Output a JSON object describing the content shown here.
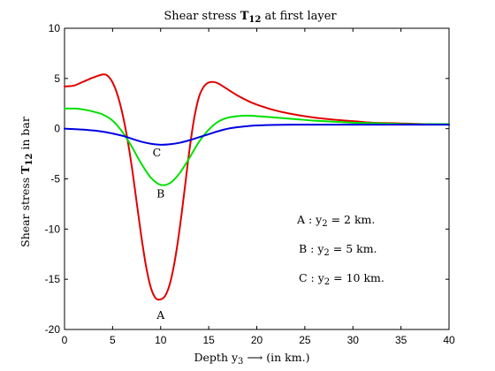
{
  "chart_data": {
    "type": "line",
    "title": {
      "prefix": "Shear stress ",
      "sym": "T",
      "sub": "12",
      "suffix": " at first layer"
    },
    "xlabel": {
      "prefix": "Depth y",
      "sub": "3",
      "suffix": " ⟶ (in km.)"
    },
    "ylabel": {
      "prefix": "Shear stress ",
      "sym": "T",
      "sub": "12",
      "suffix": " in bar"
    },
    "xlim": [
      0,
      40
    ],
    "ylim": [
      -20,
      10
    ],
    "xticks": [
      "0",
      "5",
      "10",
      "15",
      "20",
      "25",
      "30",
      "35",
      "40"
    ],
    "yticks": [
      "10",
      "5",
      "0",
      "-5",
      "-10",
      "-15",
      "-20"
    ],
    "grid": false,
    "series": [
      {
        "name": "A",
        "color": "#e00000",
        "x": [
          0,
          1,
          2,
          3,
          4,
          4.5,
          5,
          5.5,
          6,
          6.5,
          7,
          7.5,
          8,
          8.5,
          9,
          9.5,
          10,
          10.5,
          11,
          11.5,
          12,
          12.5,
          13,
          13.5,
          14,
          14.5,
          15,
          15.5,
          16,
          17,
          18,
          19,
          20,
          22,
          24,
          26,
          28,
          30,
          32,
          34,
          36,
          38,
          40
        ],
        "y": [
          4.2,
          4.3,
          4.7,
          5.1,
          5.4,
          5.25,
          4.6,
          3.4,
          1.6,
          -0.8,
          -3.8,
          -7.3,
          -10.8,
          -13.8,
          -15.9,
          -16.9,
          -17.0,
          -16.6,
          -15.3,
          -13.0,
          -9.8,
          -6.0,
          -2.1,
          1.1,
          3.2,
          4.2,
          4.6,
          4.65,
          4.5,
          3.9,
          3.3,
          2.8,
          2.4,
          1.8,
          1.4,
          1.1,
          0.9,
          0.75,
          0.6,
          0.55,
          0.5,
          0.45,
          0.45
        ]
      },
      {
        "name": "B",
        "color": "#00e000",
        "x": [
          0,
          1,
          2,
          3,
          4,
          5,
          6,
          7,
          8,
          9,
          10,
          11,
          12,
          13,
          14,
          15,
          16,
          17,
          18,
          19,
          20,
          22,
          24,
          26,
          28,
          30,
          32,
          34,
          36,
          38,
          40
        ],
        "y": [
          2.0,
          2.0,
          1.9,
          1.7,
          1.4,
          0.8,
          -0.3,
          -1.8,
          -3.5,
          -4.9,
          -5.6,
          -5.4,
          -4.4,
          -2.9,
          -1.3,
          -0.1,
          0.7,
          1.1,
          1.25,
          1.3,
          1.25,
          1.1,
          0.95,
          0.8,
          0.7,
          0.6,
          0.55,
          0.5,
          0.45,
          0.45,
          0.45
        ]
      },
      {
        "name": "C",
        "color": "#0000e0",
        "x": [
          0,
          2,
          4,
          6,
          7,
          8,
          9,
          10,
          11,
          12,
          13,
          14,
          15,
          16,
          17,
          18,
          19,
          20,
          22,
          24,
          26,
          28,
          30,
          32,
          35,
          38,
          40
        ],
        "y": [
          0.0,
          -0.1,
          -0.3,
          -0.7,
          -1.0,
          -1.3,
          -1.5,
          -1.6,
          -1.55,
          -1.4,
          -1.15,
          -0.85,
          -0.55,
          -0.25,
          0.0,
          0.15,
          0.25,
          0.32,
          0.38,
          0.4,
          0.4,
          0.4,
          0.4,
          0.4,
          0.4,
          0.4,
          0.4
        ]
      }
    ],
    "annotations": [
      {
        "text": "A",
        "x": 10,
        "y": -18.5
      },
      {
        "text": "B",
        "x": 10,
        "y": -6.4
      },
      {
        "text": "C",
        "x": 9.6,
        "y": -2.3
      }
    ],
    "legend": [
      {
        "prefix": "A : y",
        "sub": "2",
        "suffix": " = 2 km."
      },
      {
        "prefix": "B : y",
        "sub": "2",
        "suffix": " = 5 km."
      },
      {
        "prefix": "C : y",
        "sub": "2",
        "suffix": " = 10 km."
      }
    ],
    "legend_position": "lower-right"
  }
}
